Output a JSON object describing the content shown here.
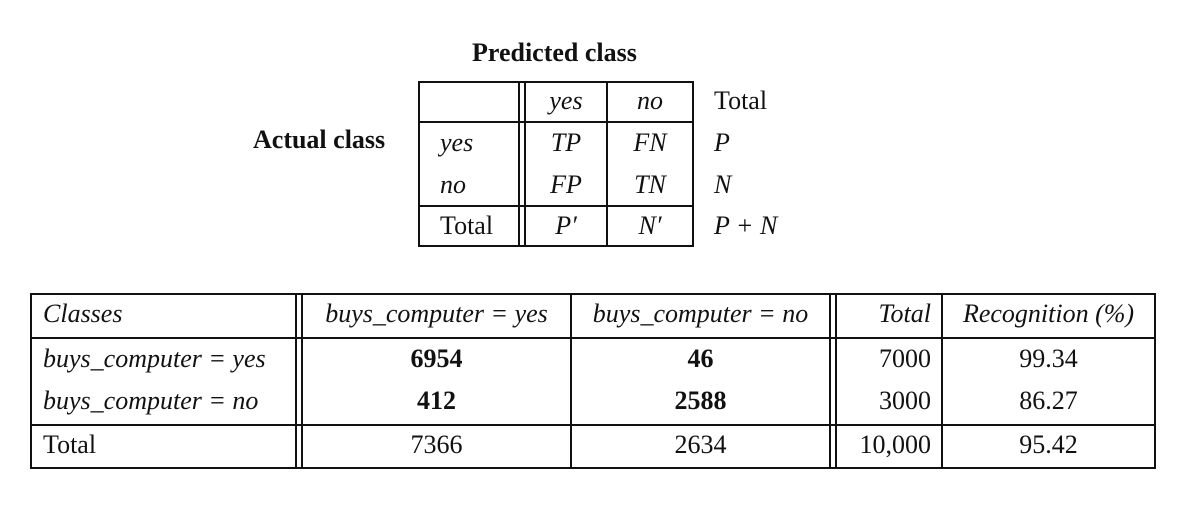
{
  "confusion_matrix": {
    "predicted_header": "Predicted class",
    "actual_header": "Actual class",
    "col_yes": "yes",
    "col_no": "no",
    "col_total": "Total",
    "rows": [
      {
        "label": "yes",
        "a": "TP",
        "b": "FN",
        "total": "P"
      },
      {
        "label": "no",
        "a": "FP",
        "b": "TN",
        "total": "N"
      },
      {
        "label": "Total",
        "a": "P′",
        "b": "N′",
        "total": "P + N"
      }
    ]
  },
  "example_table": {
    "headers": {
      "classes": "Classes",
      "yes_col": "buys_computer = yes",
      "no_col": "buys_computer = no",
      "total": "Total",
      "recognition": "Recognition (%)"
    },
    "rows": [
      {
        "label": "buys_computer = yes",
        "yes": "6954",
        "no": "46",
        "total": "7000",
        "recognition": "99.34"
      },
      {
        "label": "buys_computer = no",
        "yes": "412",
        "no": "2588",
        "total": "3000",
        "recognition": "86.27"
      },
      {
        "label": "Total",
        "yes": "7366",
        "no": "2634",
        "total": "10,000",
        "recognition": "95.42"
      }
    ]
  }
}
